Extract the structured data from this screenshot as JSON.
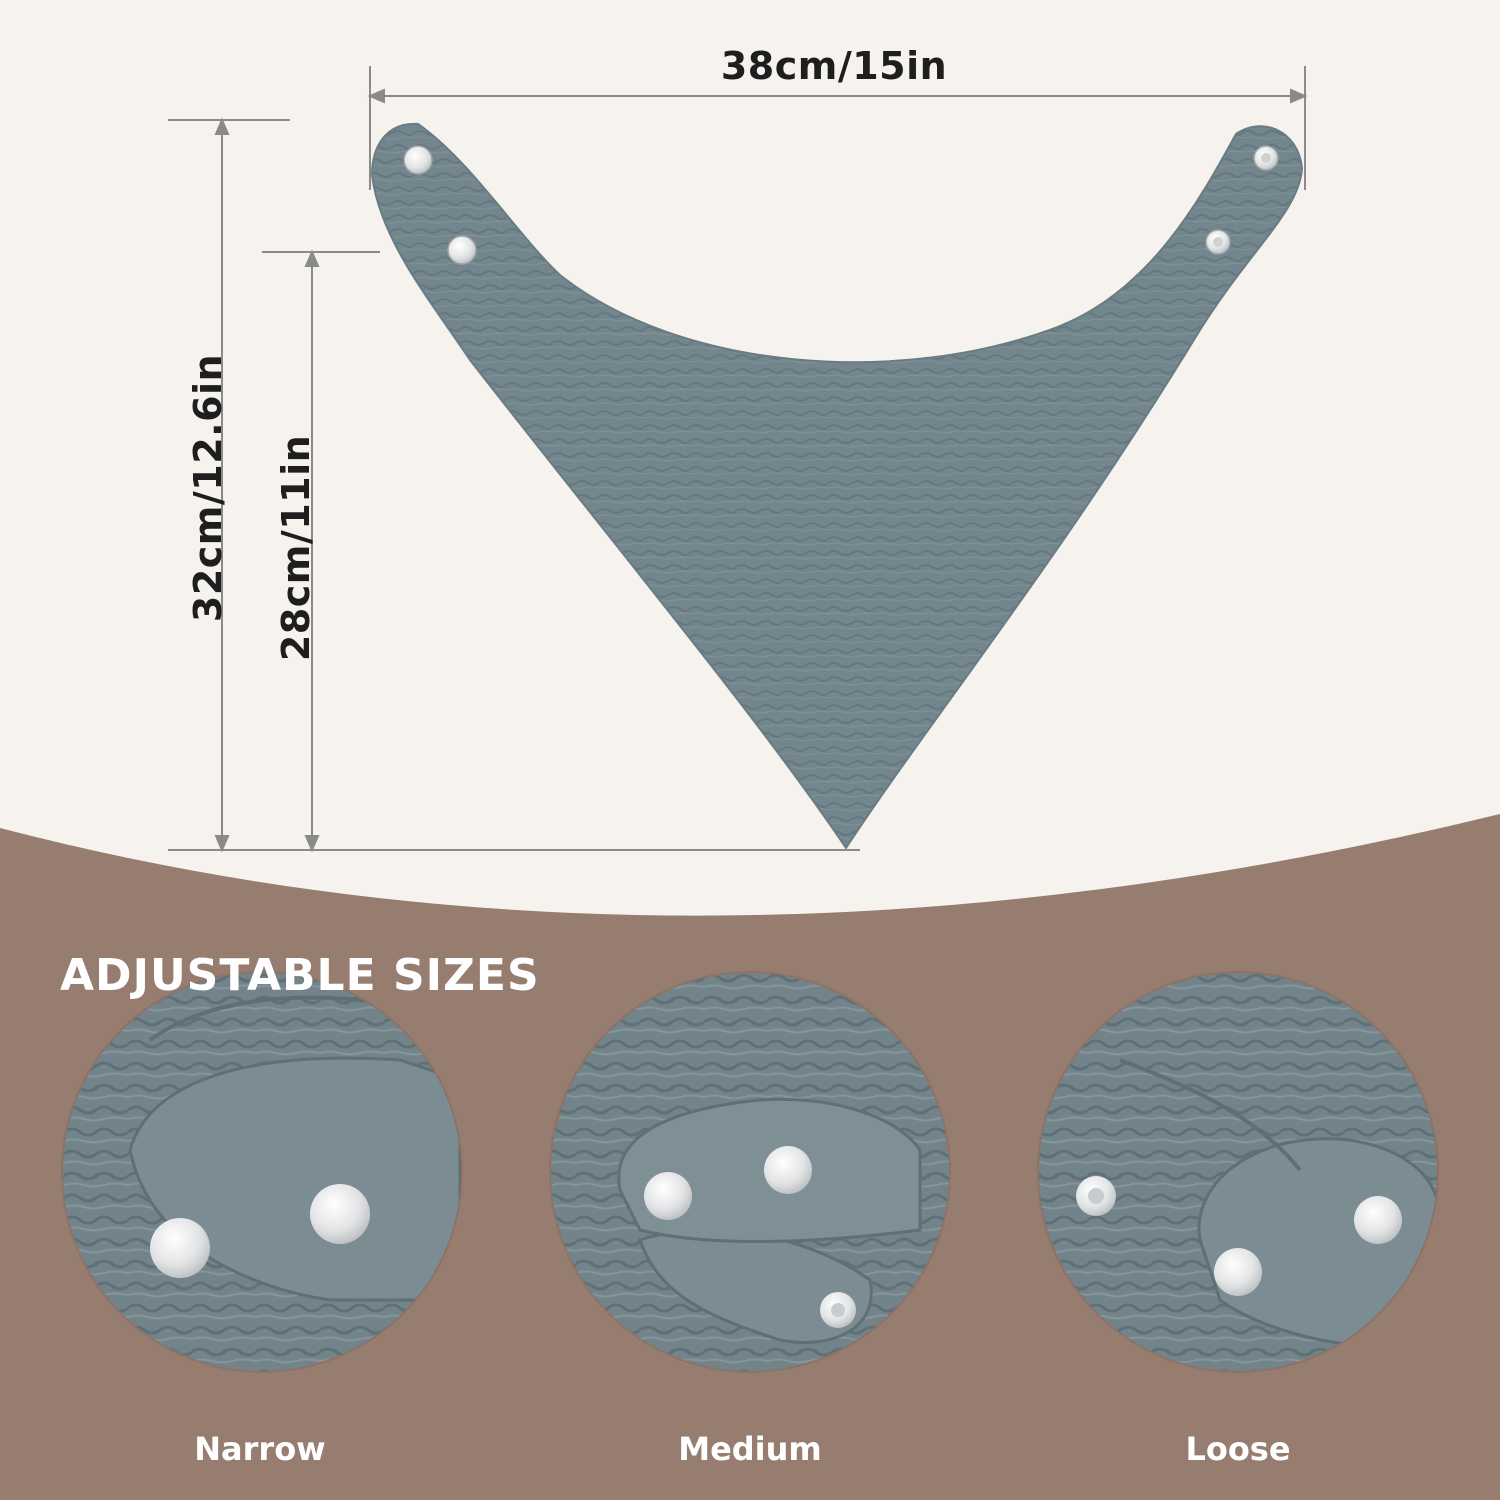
{
  "colors": {
    "background": "#f6f2ee",
    "bottom_panel": "#967d70",
    "bib_fabric": "#74868d",
    "snap": "#e9e9ea",
    "dimension_line": "#8a8a8a",
    "heading_text": "#ffffff"
  },
  "dimensions": {
    "width": "38cm/15in",
    "height_total": "32cm/12.6in",
    "height_inner": "28cm/11in"
  },
  "section": {
    "heading": "ADJUSTABLE SIZES"
  },
  "sizes": [
    {
      "label": "Narrow"
    },
    {
      "label": "Medium"
    },
    {
      "label": "Loose"
    }
  ]
}
